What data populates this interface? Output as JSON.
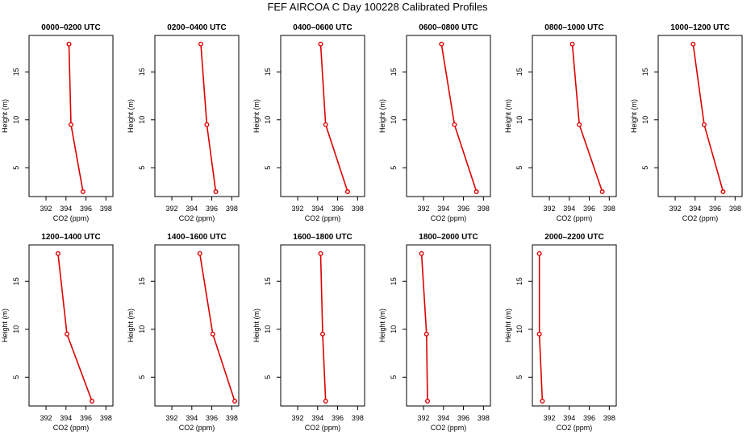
{
  "figure": {
    "title": "FEF AIRCOA C  Day 100228  Calibrated Profiles",
    "series_color": "#dd0000"
  },
  "chart_data": [
    {
      "type": "line",
      "title": "0000–0200 UTC",
      "xlabel": "CO2 (ppm)",
      "ylabel": "Height (m)",
      "xlim": [
        390.3,
        398.7
      ],
      "ylim": [
        2.0,
        18.8
      ],
      "xticks": [
        392,
        394,
        396,
        398
      ],
      "yticks": [
        5,
        10,
        15
      ],
      "x": [
        394.3,
        394.5,
        395.7
      ],
      "y": [
        17.9,
        9.5,
        2.5
      ]
    },
    {
      "type": "line",
      "title": "0200–0400 UTC",
      "xlabel": "CO2 (ppm)",
      "ylabel": "Height (m)",
      "xlim": [
        390.3,
        398.7
      ],
      "ylim": [
        2.0,
        18.8
      ],
      "xticks": [
        392,
        394,
        396,
        398
      ],
      "yticks": [
        5,
        10,
        15
      ],
      "x": [
        394.9,
        395.5,
        396.4
      ],
      "y": [
        17.9,
        9.5,
        2.5
      ]
    },
    {
      "type": "line",
      "title": "0400–0600 UTC",
      "xlabel": "CO2 (ppm)",
      "ylabel": "Height (m)",
      "xlim": [
        390.3,
        398.7
      ],
      "ylim": [
        2.0,
        18.8
      ],
      "xticks": [
        392,
        394,
        396,
        398
      ],
      "yticks": [
        5,
        10,
        15
      ],
      "x": [
        394.3,
        394.8,
        397.0
      ],
      "y": [
        17.9,
        9.5,
        2.5
      ]
    },
    {
      "type": "line",
      "title": "0600–0800 UTC",
      "xlabel": "CO2 (ppm)",
      "ylabel": "Height (m)",
      "xlim": [
        390.3,
        398.7
      ],
      "ylim": [
        2.0,
        18.8
      ],
      "xticks": [
        392,
        394,
        396,
        398
      ],
      "yticks": [
        5,
        10,
        15
      ],
      "x": [
        393.8,
        395.1,
        397.3
      ],
      "y": [
        17.9,
        9.5,
        2.5
      ]
    },
    {
      "type": "line",
      "title": "0800–1000 UTC",
      "xlabel": "CO2 (ppm)",
      "ylabel": "Height (m)",
      "xlim": [
        390.3,
        398.7
      ],
      "ylim": [
        2.0,
        18.8
      ],
      "xticks": [
        392,
        394,
        396,
        398
      ],
      "yticks": [
        5,
        10,
        15
      ],
      "x": [
        394.3,
        395.0,
        397.3
      ],
      "y": [
        17.9,
        9.5,
        2.5
      ]
    },
    {
      "type": "line",
      "title": "1000–1200 UTC",
      "xlabel": "CO2 (ppm)",
      "ylabel": "Height (m)",
      "xlim": [
        390.3,
        398.7
      ],
      "ylim": [
        2.0,
        18.8
      ],
      "xticks": [
        392,
        394,
        396,
        398
      ],
      "yticks": [
        5,
        10,
        15
      ],
      "x": [
        393.8,
        394.9,
        396.8
      ],
      "y": [
        17.9,
        9.5,
        2.5
      ]
    },
    {
      "type": "line",
      "title": "1200–1400 UTC",
      "xlabel": "CO2 (ppm)",
      "ylabel": "Height (m)",
      "xlim": [
        390.3,
        398.7
      ],
      "ylim": [
        2.0,
        18.8
      ],
      "xticks": [
        392,
        394,
        396,
        398
      ],
      "yticks": [
        5,
        10,
        15
      ],
      "x": [
        393.2,
        394.1,
        396.6
      ],
      "y": [
        17.9,
        9.5,
        2.5
      ]
    },
    {
      "type": "line",
      "title": "1400–1600 UTC",
      "xlabel": "CO2 (ppm)",
      "ylabel": "Height (m)",
      "xlim": [
        390.3,
        398.7
      ],
      "ylim": [
        2.0,
        18.8
      ],
      "xticks": [
        392,
        394,
        396,
        398
      ],
      "yticks": [
        5,
        10,
        15
      ],
      "x": [
        394.8,
        396.1,
        398.3
      ],
      "y": [
        17.9,
        9.5,
        2.5
      ]
    },
    {
      "type": "line",
      "title": "1600–1800 UTC",
      "xlabel": "CO2 (ppm)",
      "ylabel": "Height (m)",
      "xlim": [
        390.3,
        398.7
      ],
      "ylim": [
        2.0,
        18.8
      ],
      "xticks": [
        392,
        394,
        396,
        398
      ],
      "yticks": [
        5,
        10,
        15
      ],
      "x": [
        394.3,
        394.5,
        394.8
      ],
      "y": [
        17.9,
        9.5,
        2.5
      ]
    },
    {
      "type": "line",
      "title": "1800–2000 UTC",
      "xlabel": "CO2 (ppm)",
      "ylabel": "Height (m)",
      "xlim": [
        390.3,
        398.7
      ],
      "ylim": [
        2.0,
        18.8
      ],
      "xticks": [
        392,
        394,
        396,
        398
      ],
      "yticks": [
        5,
        10,
        15
      ],
      "x": [
        391.8,
        392.3,
        392.4
      ],
      "y": [
        17.9,
        9.5,
        2.5
      ]
    },
    {
      "type": "line",
      "title": "2000–2200 UTC",
      "xlabel": "CO2 (ppm)",
      "ylabel": "Height (m)",
      "xlim": [
        390.3,
        398.7
      ],
      "ylim": [
        2.0,
        18.8
      ],
      "xticks": [
        392,
        394,
        396,
        398
      ],
      "yticks": [
        5,
        10,
        15
      ],
      "x": [
        391.0,
        391.0,
        391.3
      ],
      "y": [
        17.9,
        9.5,
        2.5
      ]
    }
  ]
}
